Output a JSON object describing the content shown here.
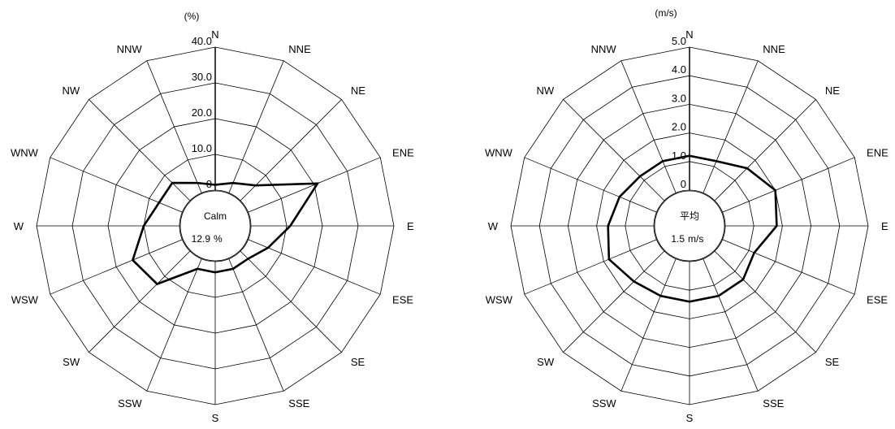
{
  "chart_data": [
    {
      "type": "radar",
      "title": "",
      "unit": "(%)",
      "directions": [
        "N",
        "NNE",
        "NE",
        "ENE",
        "E",
        "ESE",
        "SE",
        "SSE",
        "S",
        "SSW",
        "SW",
        "WSW",
        "W",
        "WNW",
        "NW",
        "NNW"
      ],
      "rlim": [
        0,
        40
      ],
      "ticks": [
        0,
        10,
        20,
        30,
        40
      ],
      "tick_labels": [
        "0",
        "10.0",
        "20.0",
        "30.0",
        "40.0"
      ],
      "grid": true,
      "series": [
        {
          "values": [
            1.5,
            3.0,
            6.0,
            21.0,
            11.0,
            6.0,
            3.0,
            3.0,
            3.0,
            3.0,
            13.0,
            15.0,
            10.0,
            7.0,
            7.0,
            3.0
          ]
        }
      ],
      "center": {
        "title": "Calm",
        "value": "12.9",
        "unit": "%"
      }
    },
    {
      "type": "radar",
      "title": "",
      "unit": "(m/s)",
      "directions": [
        "N",
        "NNE",
        "NE",
        "ENE",
        "E",
        "ESE",
        "SE",
        "SSE",
        "S",
        "SSW",
        "SW",
        "WSW",
        "W",
        "WNW",
        "NW",
        "NNW"
      ],
      "rlim": [
        0,
        5
      ],
      "ticks": [
        0,
        1,
        2,
        3,
        4,
        5
      ],
      "tick_labels": [
        "0",
        "1.0",
        "2.0",
        "3.0",
        "4.0",
        "5.0"
      ],
      "grid": true,
      "series": [
        {
          "values": [
            1.2,
            1.2,
            1.6,
            2.0,
            1.8,
            1.2,
            1.4,
            1.4,
            1.4,
            1.4,
            1.5,
            1.8,
            1.6,
            1.4,
            1.2,
            1.2
          ]
        }
      ],
      "center": {
        "title": "平均",
        "value": "1.5",
        "unit": "m/s"
      }
    }
  ]
}
